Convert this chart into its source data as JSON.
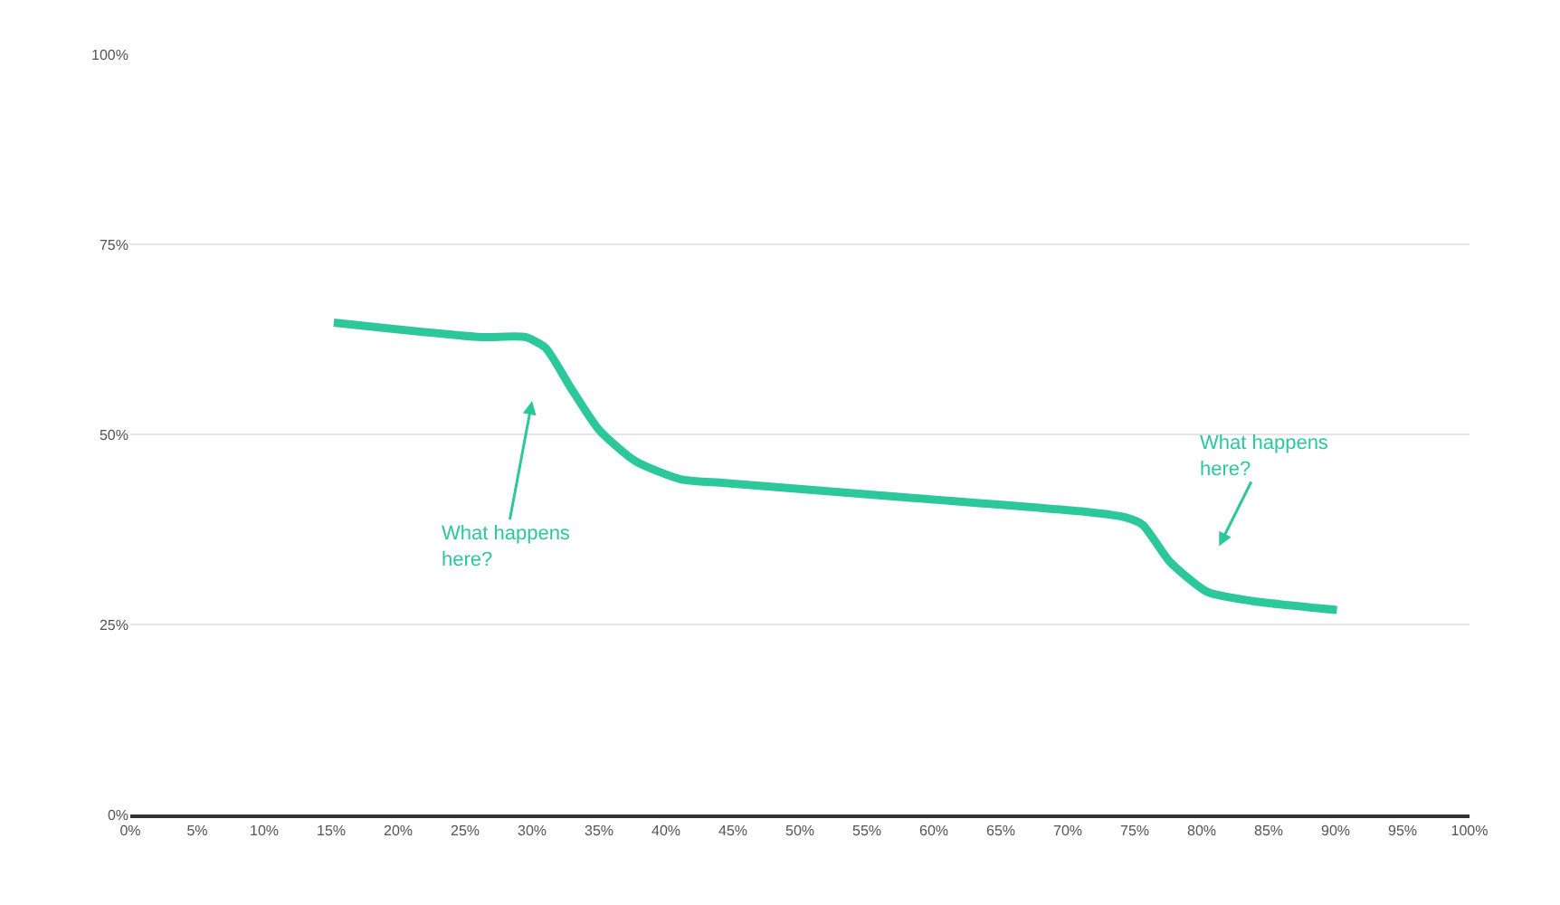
{
  "chart_data": {
    "type": "line",
    "x": [
      15.2,
      20,
      26.2,
      29.5,
      31,
      32.9,
      35,
      37.7,
      41.1,
      44.4,
      58,
      71.5,
      74.3,
      75.6,
      77.6,
      80.4,
      83.7,
      90.1
    ],
    "series": [
      {
        "color": "#2cc79b",
        "values": [
          64.7,
          63.8,
          62.8,
          62.8,
          61.4,
          56.1,
          50.6,
          46.5,
          44.1,
          43.6,
          41.7,
          39.8,
          39.1,
          38.1,
          33.3,
          29.3,
          28.1,
          26.9
        ]
      }
    ],
    "xlim": [
      0,
      100
    ],
    "xticks": [
      {
        "value": 0,
        "label": "0%"
      },
      {
        "value": 5,
        "label": "5%"
      },
      {
        "value": 10,
        "label": "10%"
      },
      {
        "value": 15,
        "label": "15%"
      },
      {
        "value": 20,
        "label": "20%"
      },
      {
        "value": 25,
        "label": "25%"
      },
      {
        "value": 30,
        "label": "30%"
      },
      {
        "value": 35,
        "label": "35%"
      },
      {
        "value": 40,
        "label": "40%"
      },
      {
        "value": 45,
        "label": "45%"
      },
      {
        "value": 50,
        "label": "50%"
      },
      {
        "value": 55,
        "label": "55%"
      },
      {
        "value": 60,
        "label": "60%"
      },
      {
        "value": 65,
        "label": "65%"
      },
      {
        "value": 70,
        "label": "70%"
      },
      {
        "value": 75,
        "label": "75%"
      },
      {
        "value": 80,
        "label": "80%"
      },
      {
        "value": 85,
        "label": "85%"
      },
      {
        "value": 90,
        "label": "90%"
      },
      {
        "value": 95,
        "label": "95%"
      },
      {
        "value": 100,
        "label": "100%"
      }
    ],
    "ylim": [
      0,
      100
    ],
    "yticks": [
      {
        "value": 0,
        "label": "0%"
      },
      {
        "value": 25,
        "label": "25%"
      },
      {
        "value": 50,
        "label": "50%"
      },
      {
        "value": 75,
        "label": "75%"
      },
      {
        "value": 100,
        "label": "100%"
      }
    ],
    "grid": "y",
    "marker": "none",
    "line_style": "solid",
    "annotations": [
      "What happens here?",
      "What happens here?"
    ]
  }
}
